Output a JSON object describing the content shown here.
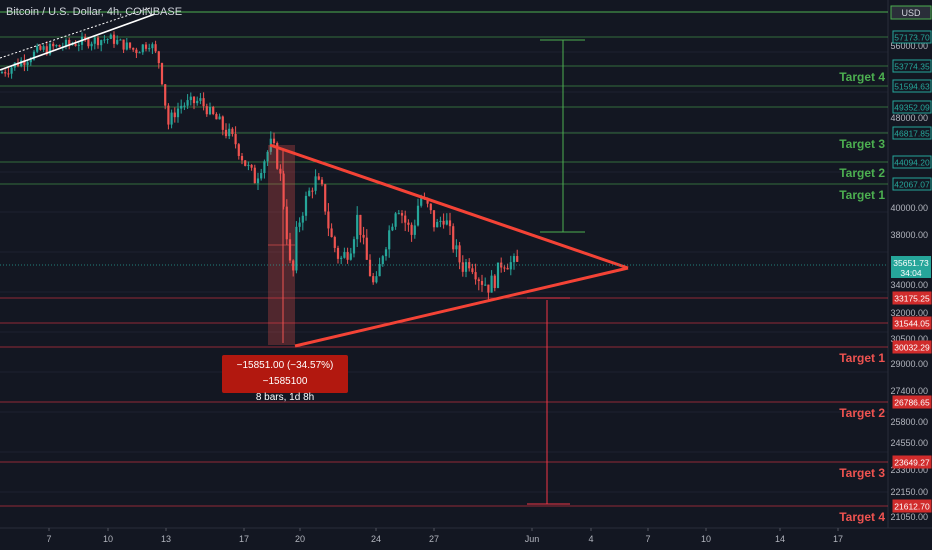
{
  "header": {
    "title": "Bitcoin / U.S. Dollar, 4h, COINBASE",
    "currency": "USD"
  },
  "measurement": {
    "change": "−15851.00 (−34.57%) −1585100",
    "duration": "8 bars, 1d 8h"
  },
  "colors": {
    "background": "#131722",
    "bullish": "#26a69a",
    "bearish": "#ef5350",
    "green_level": "#4caf50",
    "red_level": "#f23645",
    "triangle": "#f44336",
    "price_badge": "#26a69a"
  },
  "chart_data": {
    "type": "candlestick",
    "title": "Bitcoin / U.S. Dollar, 4h, COINBASE",
    "y_axis": {
      "ticks": [
        56000,
        48000,
        40000,
        38000,
        34000,
        32000,
        30500,
        29000,
        27400,
        25800,
        24550,
        23300,
        22150,
        21050
      ],
      "side": "right"
    },
    "x_axis": {
      "ticks": [
        "7",
        "10",
        "13",
        "17",
        "20",
        "24",
        "27",
        "Jun",
        "4",
        "7",
        "10",
        "14",
        "17"
      ]
    },
    "current_price": {
      "value": "35651.73",
      "countdown": "34:04"
    },
    "levels": [
      {
        "price": "57173.70",
        "side": "upper",
        "label": ""
      },
      {
        "price": "53774.35",
        "side": "upper",
        "label": "Target 4"
      },
      {
        "price": "51594.63",
        "side": "upper",
        "label": ""
      },
      {
        "price": "49352.09",
        "side": "upper",
        "label": ""
      },
      {
        "price": "46817.85",
        "side": "upper",
        "label": "Target 3"
      },
      {
        "price": "44094.20",
        "side": "upper",
        "label": "Target 2"
      },
      {
        "price": "42067.07",
        "side": "upper",
        "label": "Target 1"
      },
      {
        "price": "33175.25",
        "side": "lower",
        "label": ""
      },
      {
        "price": "31544.05",
        "side": "lower",
        "label": ""
      },
      {
        "price": "30032.29",
        "side": "lower",
        "label": "Target 1"
      },
      {
        "price": "26786.65",
        "side": "lower",
        "label": "Target 2"
      },
      {
        "price": "23649.27",
        "side": "lower",
        "label": "Target 3"
      },
      {
        "price": "21612.70",
        "side": "lower",
        "label": "Target 4"
      }
    ],
    "pattern": "symmetrical triangle",
    "measured_move": {
      "change": -15851.0,
      "percent": -34.57,
      "bars": 8,
      "time": "1d 8h"
    },
    "series": [
      {
        "name": "candles",
        "description": "4h BTC/USD candles from early May downtrend into triangle consolidation"
      }
    ]
  }
}
